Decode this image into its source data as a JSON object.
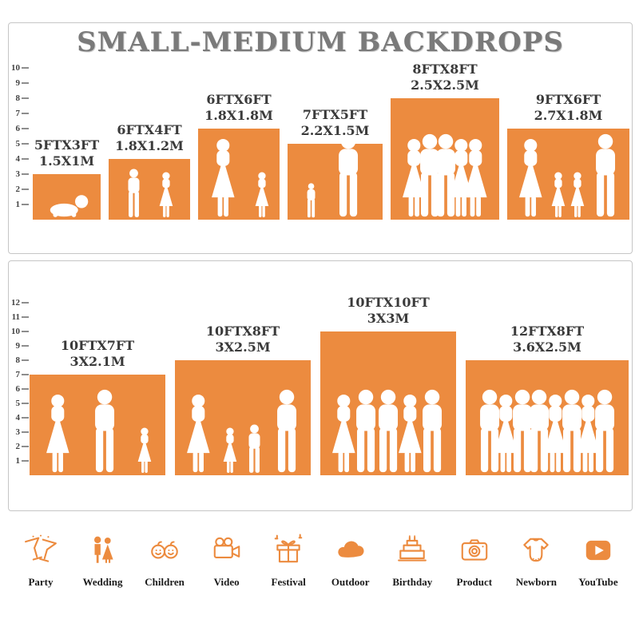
{
  "title": "SMALL-MEDIUM BACKDROPS",
  "colors": {
    "accent": "#ec8b3f",
    "title_gray": "#7a7a7a",
    "label_dark": "#3a3a3a",
    "silhouette": "#ffffff"
  },
  "panels": [
    {
      "name": "small",
      "ruler_max": 10,
      "backdrops": [
        {
          "size_ft": "5FTX3FT",
          "size_m": "1.5X1M",
          "w_ft": 5,
          "h_ft": 3,
          "figures": [
            "baby"
          ]
        },
        {
          "size_ft": "6FTX4FT",
          "size_m": "1.8X1.2M",
          "w_ft": 6,
          "h_ft": 4,
          "figures": [
            "boy",
            "girl"
          ]
        },
        {
          "size_ft": "6FTX6FT",
          "size_m": "1.8X1.8M",
          "w_ft": 6,
          "h_ft": 6,
          "figures": [
            "woman",
            "girl"
          ]
        },
        {
          "size_ft": "7FTX5FT",
          "size_m": "2.2X1.5M",
          "w_ft": 7,
          "h_ft": 5,
          "figures": [
            "toddler",
            "man"
          ]
        },
        {
          "size_ft": "8FTX8FT",
          "size_m": "2.5X2.5M",
          "w_ft": 8,
          "h_ft": 8,
          "figures": [
            "woman",
            "man",
            "man",
            "woman",
            "woman"
          ]
        },
        {
          "size_ft": "9FTX6FT",
          "size_m": "2.7X1.8M",
          "w_ft": 9,
          "h_ft": 6,
          "figures": [
            "woman",
            "girl",
            "girl",
            "man"
          ]
        }
      ]
    },
    {
      "name": "medium",
      "ruler_max": 12,
      "backdrops": [
        {
          "size_ft": "10FTX7FT",
          "size_m": "3X2.1M",
          "w_ft": 10,
          "h_ft": 7,
          "figures": [
            "woman",
            "man",
            "girl"
          ]
        },
        {
          "size_ft": "10FTX8FT",
          "size_m": "3X2.5M",
          "w_ft": 10,
          "h_ft": 8,
          "figures": [
            "woman",
            "girl",
            "boy",
            "man"
          ]
        },
        {
          "size_ft": "10FTX10FT",
          "size_m": "3X3M",
          "w_ft": 10,
          "h_ft": 10,
          "figures": [
            "woman",
            "man",
            "man",
            "woman",
            "man"
          ]
        },
        {
          "size_ft": "12FTX8FT",
          "size_m": "3.6X2.5M",
          "w_ft": 12,
          "h_ft": 8,
          "figures": [
            "man",
            "woman",
            "man",
            "man",
            "woman",
            "man",
            "woman",
            "man"
          ]
        }
      ]
    }
  ],
  "categories": [
    {
      "label": "Party",
      "icon": "party-icon"
    },
    {
      "label": "Wedding",
      "icon": "wedding-icon"
    },
    {
      "label": "Children",
      "icon": "children-icon"
    },
    {
      "label": "Video",
      "icon": "video-icon"
    },
    {
      "label": "Festival",
      "icon": "festival-icon"
    },
    {
      "label": "Outdoor",
      "icon": "outdoor-icon"
    },
    {
      "label": "Birthday",
      "icon": "birthday-icon"
    },
    {
      "label": "Product",
      "icon": "product-icon"
    },
    {
      "label": "Newborn",
      "icon": "newborn-icon"
    },
    {
      "label": "YouTube",
      "icon": "youtube-icon"
    }
  ]
}
